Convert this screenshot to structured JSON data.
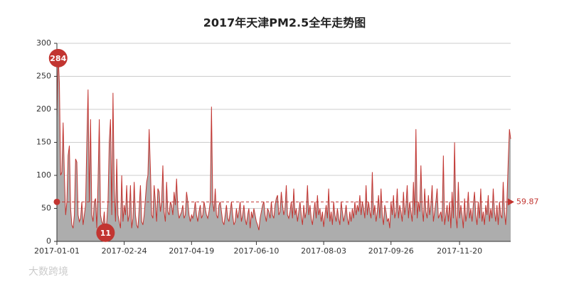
{
  "chart_data": {
    "type": "area",
    "title": "2017年天津PM2.5全年走势图",
    "watermark": "大数跨境",
    "categories": [
      "2017-01-01",
      null,
      null,
      null,
      null,
      null,
      null,
      null,
      null,
      null,
      null,
      null,
      null,
      null,
      null,
      null,
      null,
      null,
      null,
      null,
      null,
      null,
      null,
      null,
      null,
      null,
      null,
      null,
      null,
      null,
      null,
      null,
      null,
      null,
      null,
      null,
      null,
      null,
      null,
      null,
      null,
      null,
      null,
      null,
      null,
      null,
      null,
      null,
      null,
      null,
      null,
      null,
      null,
      null,
      "2017-02-24",
      null,
      null,
      null,
      null,
      null,
      null,
      null,
      null,
      null,
      null,
      null,
      null,
      null,
      null,
      null,
      null,
      null,
      null,
      null,
      null,
      null,
      null,
      null,
      null,
      null,
      null,
      null,
      null,
      null,
      null,
      null,
      null,
      null,
      null,
      null,
      null,
      null,
      null,
      null,
      null,
      null,
      null,
      null,
      null,
      null,
      null,
      null,
      null,
      null,
      null,
      null,
      null,
      null,
      "2017-04-19",
      null,
      null,
      null,
      null,
      null,
      null,
      null,
      null,
      null,
      null,
      null,
      null,
      null,
      null,
      null,
      null,
      null,
      null,
      null,
      null,
      null,
      null,
      null,
      null,
      null,
      null,
      null,
      null,
      null,
      null,
      null,
      null,
      null,
      null,
      null,
      null,
      null,
      null,
      null,
      null,
      null,
      null,
      null,
      null,
      null,
      null,
      null,
      null,
      null,
      null,
      null,
      "2017-06-10",
      null,
      null,
      null,
      null,
      null,
      null,
      null,
      null,
      null,
      null,
      null,
      null,
      null,
      null,
      null,
      null,
      null,
      null,
      null,
      null,
      null,
      null,
      null,
      null,
      null,
      null,
      null,
      null,
      null,
      null,
      null,
      null,
      null,
      null,
      null,
      null,
      null,
      null,
      null,
      null,
      null,
      null,
      null,
      null,
      null,
      null,
      null,
      null,
      null,
      null,
      null,
      null,
      null,
      "2017-08-03",
      null,
      null,
      null,
      null,
      null,
      null,
      null,
      null,
      null,
      null,
      null,
      null,
      null,
      null,
      null,
      null,
      null,
      null,
      null,
      null,
      null,
      null,
      null,
      null,
      null,
      null,
      null,
      null,
      null,
      null,
      null,
      null,
      null,
      null,
      null,
      null,
      null,
      null,
      null,
      null,
      null,
      null,
      null,
      null,
      null,
      null,
      null,
      null,
      null,
      null,
      null,
      null,
      null,
      "2017-09-26",
      null,
      null,
      null,
      null,
      null,
      null,
      null,
      null,
      null,
      null,
      null,
      null,
      null,
      null,
      null,
      null,
      null,
      null,
      null,
      null,
      null,
      null,
      null,
      null,
      null,
      null,
      null,
      null,
      null,
      null,
      null,
      null,
      null,
      null,
      null,
      null,
      null,
      null,
      null,
      null,
      null,
      null,
      null,
      null,
      null,
      null,
      null,
      null,
      null,
      null,
      null,
      null,
      null,
      null,
      "2017-11-20",
      null,
      null,
      null,
      null,
      null,
      null,
      null,
      null,
      null,
      null,
      null,
      null,
      null,
      null,
      null,
      null,
      null,
      null,
      null,
      null,
      null,
      null,
      null,
      null,
      null,
      null,
      null,
      null,
      null,
      null,
      null,
      null,
      null,
      null,
      null,
      null,
      null,
      null,
      null,
      null,
      null
    ],
    "series": [
      {
        "color": "#c23531",
        "fill": "#adadad",
        "values": [
          188,
          284,
          240,
          100,
          105,
          180,
          100,
          40,
          60,
          130,
          145,
          50,
          25,
          20,
          40,
          125,
          120,
          40,
          30,
          35,
          60,
          25,
          40,
          55,
          150,
          230,
          60,
          185,
          40,
          30,
          60,
          65,
          20,
          90,
          185,
          40,
          30,
          25,
          45,
          11,
          30,
          60,
          150,
          185,
          40,
          225,
          80,
          30,
          125,
          40,
          30,
          20,
          100,
          30,
          55,
          40,
          85,
          30,
          40,
          85,
          20,
          35,
          90,
          40,
          25,
          20,
          50,
          85,
          30,
          25,
          40,
          65,
          90,
          100,
          170,
          110,
          40,
          35,
          85,
          60,
          30,
          80,
          75,
          45,
          60,
          115,
          45,
          30,
          90,
          45,
          40,
          60,
          55,
          40,
          75,
          55,
          95,
          50,
          35,
          40,
          45,
          55,
          35,
          40,
          75,
          60,
          40,
          30,
          40,
          35,
          45,
          60,
          40,
          30,
          45,
          55,
          35,
          40,
          60,
          50,
          40,
          35,
          45,
          60,
          204,
          60,
          45,
          80,
          40,
          35,
          55,
          60,
          45,
          30,
          25,
          40,
          55,
          35,
          30,
          45,
          60,
          40,
          25,
          30,
          50,
          35,
          45,
          60,
          30,
          40,
          55,
          35,
          25,
          40,
          50,
          20,
          45,
          35,
          50,
          40,
          30,
          25,
          17,
          35,
          45,
          55,
          60,
          40,
          30,
          50,
          45,
          35,
          60,
          40,
          35,
          55,
          65,
          70,
          40,
          45,
          75,
          55,
          40,
          50,
          85,
          40,
          35,
          45,
          60,
          35,
          80,
          40,
          50,
          30,
          45,
          60,
          40,
          25,
          55,
          35,
          45,
          85,
          40,
          55,
          35,
          25,
          45,
          60,
          35,
          70,
          40,
          50,
          30,
          45,
          22,
          40,
          55,
          35,
          80,
          30,
          45,
          25,
          60,
          40,
          30,
          50,
          35,
          25,
          60,
          45,
          30,
          40,
          55,
          35,
          25,
          45,
          30,
          50,
          35,
          60,
          40,
          55,
          45,
          70,
          40,
          60,
          50,
          35,
          85,
          40,
          60,
          45,
          35,
          105,
          40,
          55,
          30,
          45,
          70,
          35,
          80,
          40,
          25,
          55,
          45,
          30,
          35,
          20,
          60,
          40,
          70,
          35,
          45,
          80,
          35,
          55,
          45,
          30,
          75,
          40,
          55,
          85,
          35,
          60,
          45,
          30,
          90,
          40,
          170,
          35,
          60,
          45,
          115,
          50,
          30,
          80,
          45,
          35,
          70,
          40,
          55,
          85,
          30,
          45,
          60,
          80,
          35,
          40,
          45,
          30,
          130,
          25,
          40,
          55,
          30,
          60,
          20,
          75,
          35,
          150,
          40,
          20,
          90,
          35,
          55,
          40,
          20,
          65,
          30,
          45,
          75,
          35,
          50,
          30,
          55,
          75,
          40,
          25,
          60,
          35,
          80,
          30,
          45,
          25,
          55,
          40,
          70,
          30,
          50,
          35,
          80,
          45,
          30,
          55,
          25,
          60,
          40,
          35,
          90,
          45,
          25,
          60,
          120,
          170,
          155
        ]
      }
    ],
    "mark_max": 284,
    "mark_max_index": 1,
    "mark_min": 11,
    "mark_min_index": 39,
    "mean": 59.87,
    "ylim": [
      0,
      300
    ],
    "yticks": [
      0,
      50,
      100,
      150,
      200,
      250,
      300
    ],
    "grid": true
  }
}
